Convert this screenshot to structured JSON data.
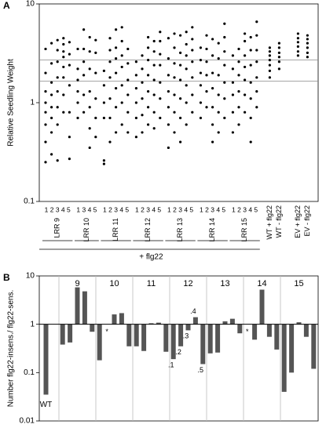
{
  "chart_data": [
    {
      "type": "strip",
      "panel_label": "A",
      "ylabel": "Relative Seedling Weight",
      "log": true,
      "ylim": [
        0.1,
        10
      ],
      "yticks": [
        0.1,
        1,
        10
      ],
      "hlines": [
        2.7,
        1.65
      ],
      "color": "#000000",
      "groups": [
        {
          "name": "LRR 9",
          "tick_labels": "1 2 3 4 5",
          "values": [
            [
              0.25,
              0.4,
              0.6,
              0.8,
              1,
              1.3,
              2,
              3.5
            ],
            [
              0.3,
              0.5,
              0.7,
              0.9,
              1.2,
              1.6,
              2.5,
              4
            ],
            [
              0.26,
              0.6,
              0.9,
              1.3,
              1.8,
              2.6,
              3.4,
              4.3
            ],
            [
              0.8,
              1.2,
              1.8,
              2.3,
              2.9,
              3.3,
              3.9,
              4.5
            ],
            [
              0.27,
              0.45,
              0.8,
              1.5,
              2.4,
              3.1,
              4.1
            ]
          ]
        },
        {
          "name": "LRR 10",
          "tick_labels": "1 3 4 5",
          "values": [
            [
              0.7,
              1,
              1.3,
              1.7,
              2.2,
              3.5
            ],
            [
              0.8,
              1.2,
              1.9,
              2.6,
              3.5,
              5.5
            ],
            [
              0.35,
              0.55,
              0.9,
              1.3,
              2.2,
              3.3,
              4.6
            ],
            [
              0.45,
              0.7,
              1.1,
              2,
              3.2,
              4.3
            ]
          ]
        },
        {
          "name": "LRR 11",
          "tick_labels": "1 2 3 4 5",
          "values": [
            [
              0.24,
              0.26,
              0.7,
              1,
              1.5,
              2.1
            ],
            [
              0.4,
              0.7,
              1.1,
              1.8,
              2.6,
              3.4,
              4.5
            ],
            [
              0.5,
              0.9,
              1.4,
              2,
              2.8,
              3.6,
              5.5
            ],
            [
              0.6,
              1,
              1.5,
              2.3,
              3,
              4.2,
              5.8
            ],
            [
              0.5,
              0.8,
              1.2,
              1.7,
              2.5,
              3.5
            ]
          ]
        },
        {
          "name": "LRR 12",
          "tick_labels": "1 2 3 4 5",
          "values": [
            [
              0.45,
              0.7,
              1,
              1.4,
              1.9,
              2.6
            ],
            [
              0.5,
              0.75,
              1.1,
              1.6,
              2.2,
              3
            ],
            [
              0.6,
              0.9,
              1.3,
              1.9,
              2.7,
              3.6,
              4.6
            ],
            [
              0.55,
              0.8,
              1.2,
              1.7,
              2.4,
              3.3,
              4.2
            ],
            [
              0.7,
              1.1,
              1.6,
              2.4,
              3.1,
              4.2,
              5.2
            ]
          ]
        },
        {
          "name": "LRR 13",
          "tick_labels": "1 2 3 4 5",
          "values": [
            [
              0.35,
              0.6,
              0.9,
              1.3,
              1.9,
              2.8,
              4.5
            ],
            [
              0.5,
              0.8,
              1.2,
              1.8,
              2.5,
              3.6,
              5
            ],
            [
              0.4,
              0.7,
              1.1,
              1.7,
              2.4,
              3.2,
              4.8
            ],
            [
              0.6,
              1,
              1.5,
              2.2,
              3,
              3.9,
              5.2
            ],
            [
              0.8,
              1.2,
              1.8,
              2.6,
              3.4,
              4.4,
              5.8
            ]
          ]
        },
        {
          "name": "LRR 14",
          "tick_labels": "1 2 3 4 5",
          "values": [
            [
              0.7,
              1,
              1.5,
              2,
              2.7,
              3.6
            ],
            [
              0.9,
              1.3,
              1.9,
              2.6,
              3.5,
              4.8
            ],
            [
              0.4,
              0.6,
              0.9,
              1.4,
              2,
              3,
              4.4
            ],
            [
              0.5,
              0.8,
              1.2,
              1.9,
              2.8,
              4
            ],
            [
              0.7,
              1.1,
              1.6,
              2.4,
              3.3,
              4.6,
              6.3
            ]
          ]
        },
        {
          "name": "LRR 15",
          "tick_labels": "1 2 3 4 5",
          "values": [
            [
              0.5,
              0.8,
              1.2,
              1.6,
              2.2,
              3
            ],
            [
              0.6,
              0.9,
              1.3,
              1.9,
              2.6,
              3.5
            ],
            [
              0.8,
              1.2,
              1.7,
              2.3,
              3,
              4.2,
              5
            ],
            [
              0.4,
              0.7,
              1.1,
              1.6,
              2.4,
              3.4,
              4.6
            ],
            [
              0.9,
              1.3,
              1.8,
              2.6,
              3.4,
              4.8,
              6.6
            ]
          ]
        }
      ],
      "group_label": "+ flg22",
      "controls": [
        {
          "name": "WT + flg22",
          "values": [
            1.8,
            2.1,
            2.4,
            2.7,
            3,
            3.3,
            3.6
          ]
        },
        {
          "name": "WT - flg22",
          "values": [
            2.2,
            2.6,
            2.9,
            3.2,
            3.6,
            4
          ]
        },
        {
          "name": "EV + flg22",
          "values": [
            3,
            3.3,
            3.7,
            4.1,
            4.5,
            5
          ]
        },
        {
          "name": "EV - flg22",
          "values": [
            2.9,
            3.2,
            3.6,
            4,
            4.4,
            4.8
          ]
        }
      ]
    },
    {
      "type": "bar",
      "panel_label": "B",
      "ylabel": "Number flg22-insens./ flg22-sens.",
      "log": true,
      "ylim": [
        0.01,
        10
      ],
      "yticks": [
        0.01,
        0.1,
        1,
        10
      ],
      "baseline": 1,
      "color": "#555555",
      "groups": [
        {
          "name": "WT",
          "label_position": "bottom",
          "values": [
            0.035
          ]
        },
        {
          "name": "9",
          "values": [
            0.38,
            0.42,
            5.8,
            4.8,
            0.7
          ]
        },
        {
          "name": "10",
          "values": [
            0.18,
            null,
            1.6,
            1.7,
            0.35
          ],
          "bar_labels": [
            null,
            "*",
            null,
            null,
            null
          ]
        },
        {
          "name": "11",
          "values": [
            0.35,
            0.28,
            1.05,
            1.08,
            0.27
          ]
        },
        {
          "name": "12",
          "values": [
            0.19,
            0.35,
            0.75,
            1.4,
            0.15
          ],
          "bar_labels": [
            ".1",
            ".2",
            ".3",
            ".4",
            ".5"
          ]
        },
        {
          "name": "13",
          "values": [
            0.25,
            0.26,
            1.15,
            1.3,
            0.65
          ]
        },
        {
          "name": "14",
          "values": [
            null,
            0.48,
            5.2,
            0.55,
            0.3
          ],
          "bar_labels": [
            "*",
            null,
            null,
            null,
            null
          ]
        },
        {
          "name": "15",
          "values": [
            0.04,
            0.1,
            1.1,
            0.55,
            0.12
          ]
        }
      ]
    }
  ]
}
